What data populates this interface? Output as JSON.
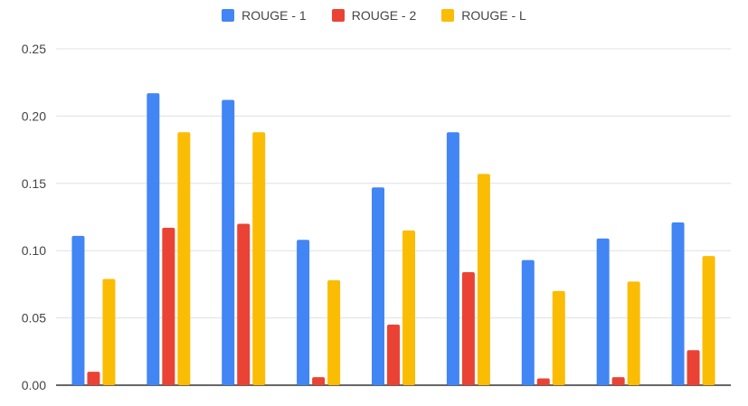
{
  "chart_data": {
    "type": "bar",
    "title": "",
    "xlabel": "",
    "ylabel": "",
    "categories": [
      "",
      "",
      "",
      "",
      "",
      "",
      "",
      "",
      ""
    ],
    "ylim": [
      0,
      0.25
    ],
    "yticks": [
      "0.00",
      "0.05",
      "0.10",
      "0.15",
      "0.20",
      "0.25"
    ],
    "grid": true,
    "legend_position": "top-center",
    "series": [
      {
        "name": "ROUGE - 1",
        "color": "#4285F4",
        "values": [
          0.111,
          0.217,
          0.212,
          0.108,
          0.147,
          0.188,
          0.093,
          0.109,
          0.121
        ]
      },
      {
        "name": "ROUGE - 2",
        "color": "#EA4335",
        "values": [
          0.01,
          0.117,
          0.12,
          0.006,
          0.045,
          0.084,
          0.005,
          0.006,
          0.026
        ]
      },
      {
        "name": "ROUGE - L",
        "color": "#FBBC04",
        "values": [
          0.079,
          0.188,
          0.188,
          0.078,
          0.115,
          0.157,
          0.07,
          0.077,
          0.096
        ]
      }
    ]
  }
}
